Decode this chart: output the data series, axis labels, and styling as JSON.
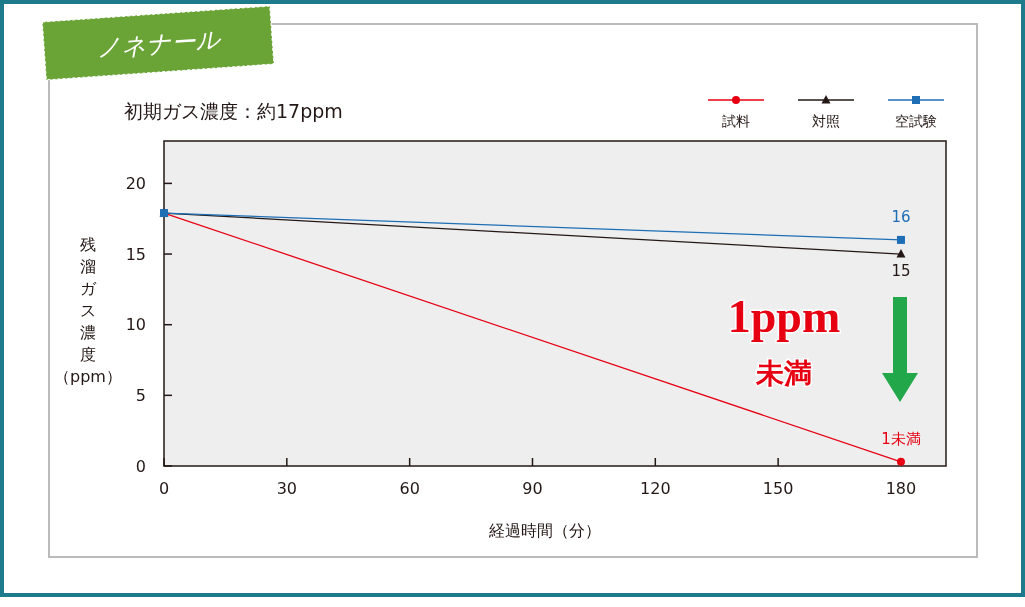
{
  "chart_data": {
    "type": "line",
    "title": "ノネナール",
    "subtitle": "初期ガス濃度：約17ppm",
    "xlabel": "経過時間（分）",
    "ylabel": "残溜ガス濃度（ppm）",
    "x": [
      0,
      180
    ],
    "xlim": [
      0,
      191
    ],
    "xticks": [
      0,
      30,
      60,
      90,
      120,
      150,
      180
    ],
    "ylim": [
      0,
      23
    ],
    "yticks": [
      0,
      5,
      10,
      15,
      20
    ],
    "grid": false,
    "legend": "top right",
    "series": [
      {
        "name": "試料",
        "color": "#e60012",
        "values": [
          17.9,
          0.3
        ],
        "marker": "circle"
      },
      {
        "name": "対照",
        "color": "#231815",
        "values": [
          17.9,
          15
        ],
        "marker": "triangle",
        "value_labels": [
          null,
          "15"
        ]
      },
      {
        "name": "空試験",
        "color": "#1d6eb5",
        "values": [
          17.9,
          16
        ],
        "marker": "square",
        "value_labels": [
          null,
          "16"
        ]
      }
    ],
    "annotations": [
      "1ppm",
      "未満",
      {
        "text": "1未満",
        "x": 180,
        "y": 0.3
      }
    ]
  }
}
